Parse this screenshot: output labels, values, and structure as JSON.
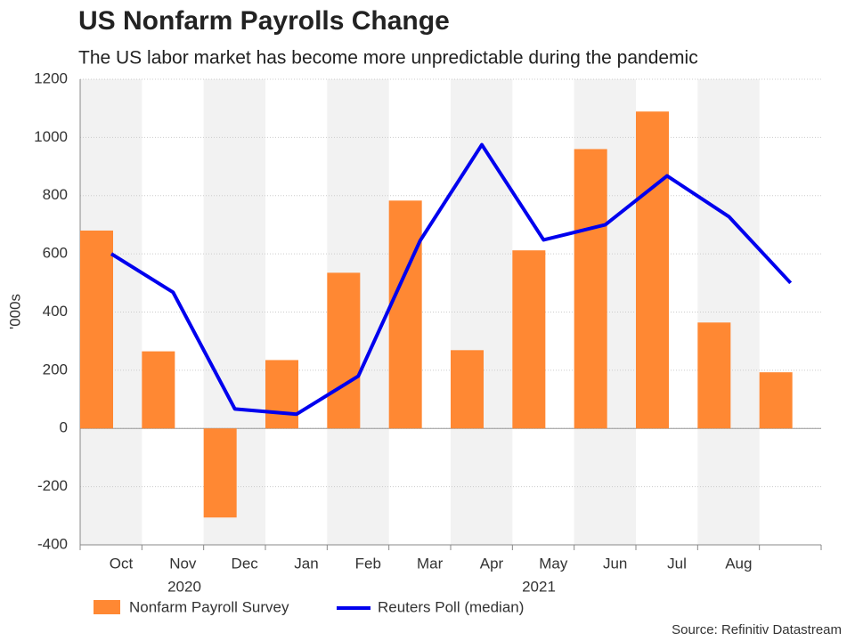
{
  "chart_data": {
    "type": "bar-line",
    "title": "US Nonfarm Payrolls Change",
    "subtitle": "The US labor market has become more unpredictable during the pandemic",
    "y_label": "'000s",
    "categories": [
      "Oct",
      "Nov",
      "Dec",
      "Jan",
      "Feb",
      "Mar",
      "Apr",
      "May",
      "Jun",
      "Jul",
      "Aug",
      null
    ],
    "years": [
      "2020",
      "2021"
    ],
    "series": [
      {
        "name": "Nonfarm Payroll Survey",
        "type": "bar",
        "color": "#ff8833",
        "values": [
          680,
          265,
          -306,
          235,
          535,
          783,
          269,
          612,
          960,
          1089,
          364,
          193
        ]
      },
      {
        "name": "Reuters Poll (median)",
        "type": "line",
        "color": "#0000ee",
        "values": [
          600,
          468,
          67,
          49,
          180,
          645,
          975,
          648,
          700,
          868,
          728,
          500
        ]
      }
    ],
    "ylim": [
      -400,
      1200
    ],
    "yticks": [
      -400,
      -200,
      0,
      200,
      400,
      600,
      800,
      1000,
      1200
    ],
    "grid": true,
    "source": "Source: Refinitiv Datastream"
  }
}
